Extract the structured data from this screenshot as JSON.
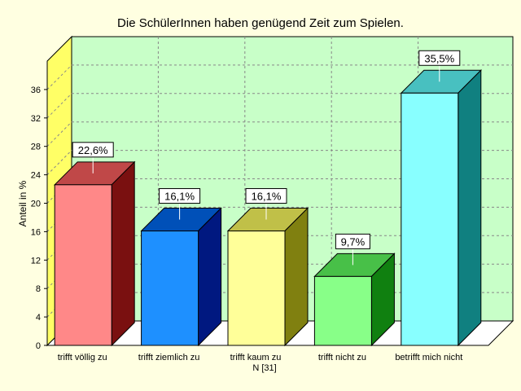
{
  "chart_data": {
    "type": "bar",
    "title": "Die SchülerInnen haben genügend Zeit zum Spielen.",
    "ylabel": "Anteil in %",
    "xlabel": "",
    "n_label": "N [31]",
    "ylim": [
      0,
      40
    ],
    "yticks": [
      0,
      4,
      8,
      12,
      16,
      20,
      24,
      28,
      32,
      36
    ],
    "grid": true,
    "categories": [
      "trifft völlig zu",
      "trifft ziemlich zu",
      "trifft kaum zu",
      "trifft nicht zu",
      "betrifft mich nicht"
    ],
    "values": [
      22.6,
      16.1,
      16.1,
      9.7,
      35.5
    ],
    "value_labels": [
      "22,6%",
      "16,1%",
      "16,1%",
      "9,7%",
      "35,5%"
    ],
    "colors": {
      "front": [
        "#ff8888",
        "#1e90ff",
        "#ffff99",
        "#88ff88",
        "#88ffff"
      ],
      "top": [
        "#c04848",
        "#0050b8",
        "#c0c048",
        "#48c048",
        "#48c0c0"
      ],
      "side": [
        "#7a1010",
        "#001880",
        "#808010",
        "#108010",
        "#108080"
      ]
    },
    "background_color": "#ffffe1",
    "plot_color": "#c8ffc8"
  }
}
